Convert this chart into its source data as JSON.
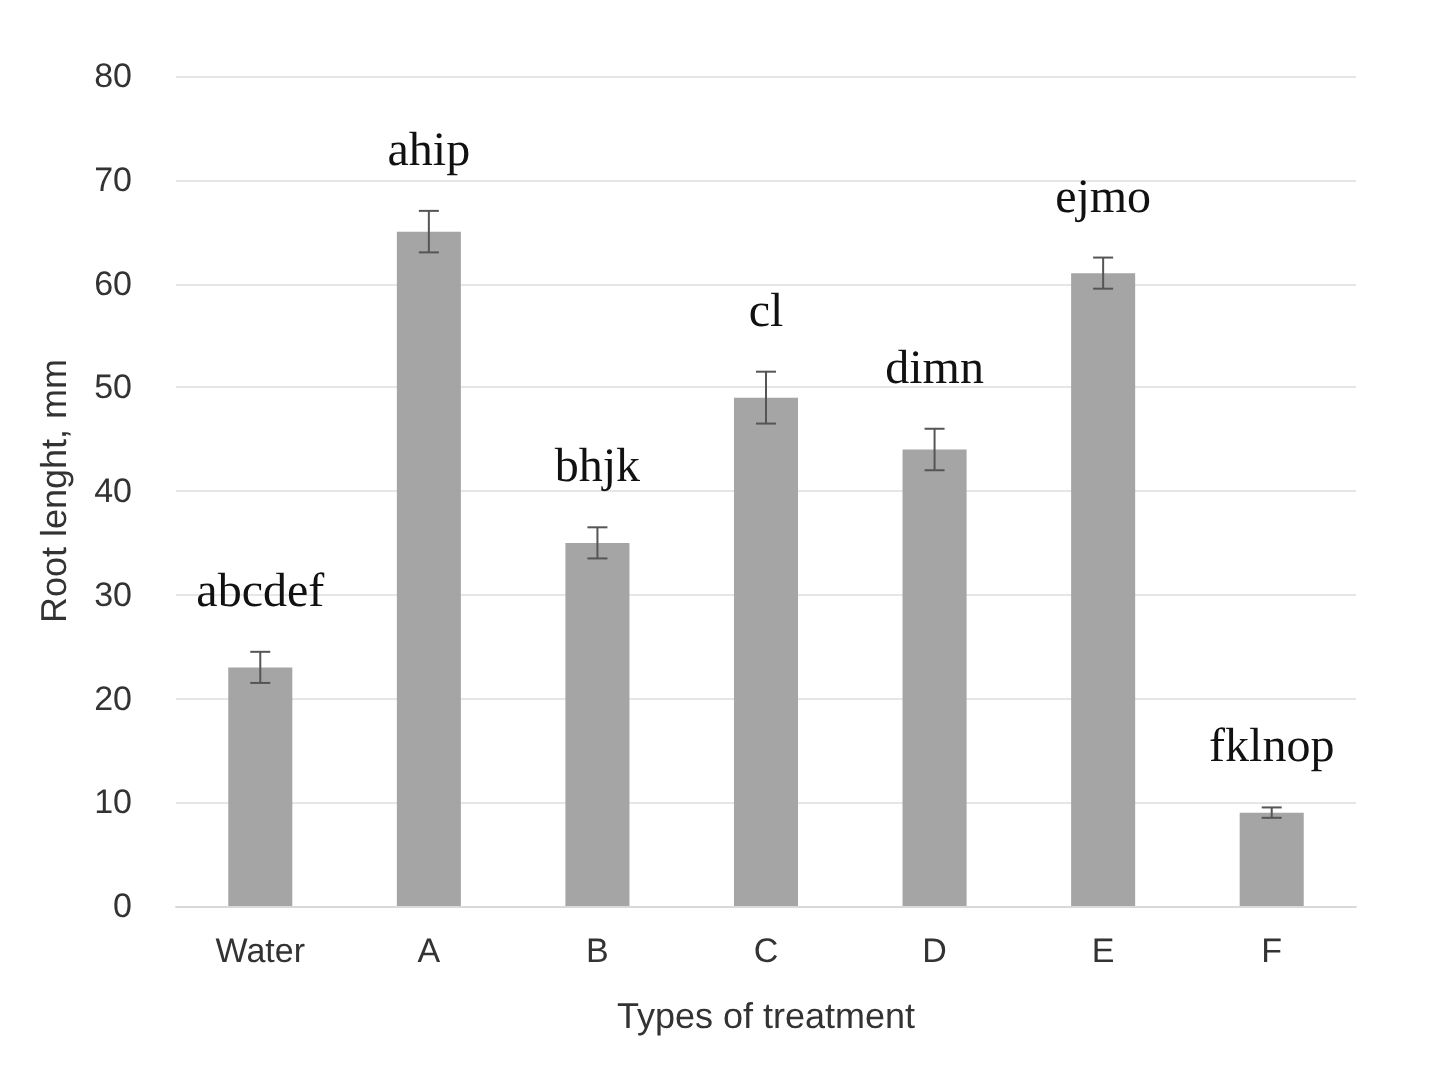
{
  "chart_data": {
    "type": "bar",
    "xlabel": "Types of treatment",
    "ylabel": "Root lenght, mm",
    "categories": [
      "Water",
      "A",
      "B",
      "C",
      "D",
      "E",
      "F"
    ],
    "values": [
      23,
      65,
      35,
      49,
      44,
      61,
      9
    ],
    "errors": [
      1.5,
      2,
      1.5,
      2.5,
      2,
      1.5,
      0.5
    ],
    "color": "#a5a5a5",
    "ylim": [
      0,
      80
    ],
    "yticks": [
      0,
      10,
      20,
      30,
      40,
      50,
      60,
      70,
      80
    ],
    "grid": "y",
    "annotations": [
      "abcdef",
      "ahip",
      "bhjk",
      "cl",
      "dimn",
      "ejmo",
      "fklnop"
    ]
  }
}
